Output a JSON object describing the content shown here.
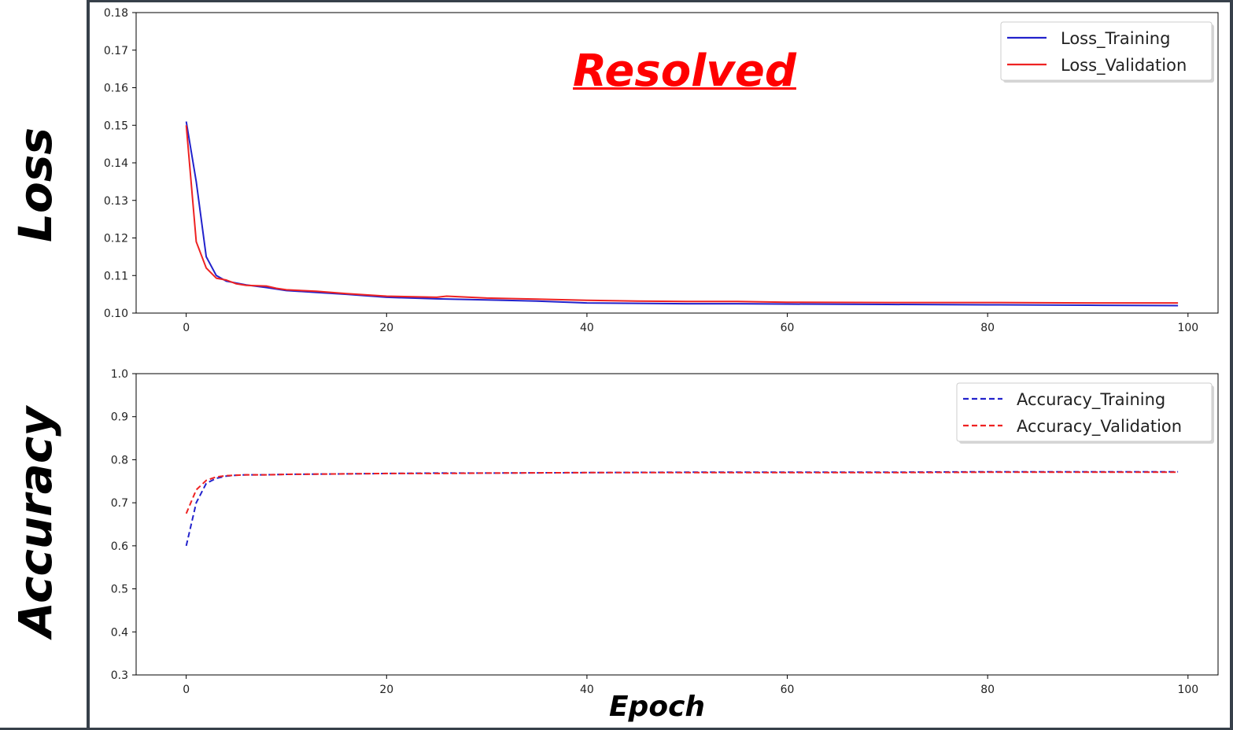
{
  "annotations": {
    "resolved": "Resolved",
    "loss_label": "Loss",
    "accuracy_label": "Accuracy",
    "epoch_label": "Epoch"
  },
  "colors": {
    "training": "#2222cc",
    "validation": "#ee2222"
  },
  "chart_data": [
    {
      "type": "line",
      "title": "",
      "xlabel": "",
      "ylabel": "Loss",
      "xlim": [
        -5,
        103
      ],
      "ylim": [
        0.1,
        0.18
      ],
      "xticks": [
        0,
        20,
        40,
        60,
        80,
        100
      ],
      "yticks": [
        0.1,
        0.11,
        0.12,
        0.13,
        0.14,
        0.15,
        0.16,
        0.17,
        0.18
      ],
      "ytick_labels": [
        "0.10",
        "0.11",
        "0.12",
        "0.13",
        "0.14",
        "0.15",
        "0.16",
        "0.17",
        "0.18"
      ],
      "xtick_labels": [
        "0",
        "20",
        "40",
        "60",
        "80",
        "100"
      ],
      "legend_position": "top-right",
      "series": [
        {
          "name": "Loss_Training",
          "style": "solid",
          "color": "#2222cc",
          "x": [
            0,
            1,
            2,
            3,
            4,
            5,
            6,
            8,
            10,
            13,
            16,
            20,
            25,
            30,
            35,
            40,
            45,
            50,
            55,
            60,
            70,
            80,
            90,
            99
          ],
          "y": [
            0.151,
            0.135,
            0.115,
            0.11,
            0.1085,
            0.108,
            0.1075,
            0.1068,
            0.106,
            0.1055,
            0.105,
            0.1042,
            0.1038,
            0.1035,
            0.1032,
            0.1027,
            0.1026,
            0.1025,
            0.1025,
            0.1024,
            0.1023,
            0.1022,
            0.1021,
            0.102
          ]
        },
        {
          "name": "Loss_Validation",
          "style": "solid",
          "color": "#ee2222",
          "x": [
            0,
            1,
            2,
            3,
            4,
            5,
            6,
            8,
            9,
            10,
            13,
            16,
            20,
            25,
            26,
            30,
            35,
            40,
            45,
            50,
            55,
            60,
            70,
            80,
            90,
            99
          ],
          "y": [
            0.15,
            0.119,
            0.112,
            0.1093,
            0.1088,
            0.1078,
            0.1074,
            0.1072,
            0.1066,
            0.1062,
            0.1058,
            0.1052,
            0.1045,
            0.1042,
            0.1045,
            0.104,
            0.1037,
            0.1034,
            0.1032,
            0.1031,
            0.1031,
            0.1029,
            0.1028,
            0.1028,
            0.1027,
            0.1027
          ]
        }
      ]
    },
    {
      "type": "line",
      "title": "",
      "xlabel": "Epoch",
      "ylabel": "Accuracy",
      "xlim": [
        -5,
        103
      ],
      "ylim": [
        0.3,
        1.0
      ],
      "xticks": [
        0,
        20,
        40,
        60,
        80,
        100
      ],
      "yticks": [
        0.3,
        0.4,
        0.5,
        0.6,
        0.7,
        0.8,
        0.9,
        1.0
      ],
      "ytick_labels": [
        "0.3",
        "0.4",
        "0.5",
        "0.6",
        "0.7",
        "0.8",
        "0.9",
        "1.0"
      ],
      "xtick_labels": [
        "0",
        "20",
        "40",
        "60",
        "80",
        "100"
      ],
      "legend_position": "top-right",
      "series": [
        {
          "name": "Accuracy_Training",
          "style": "dashed",
          "color": "#2222cc",
          "x": [
            0,
            1,
            2,
            3,
            4,
            5,
            6,
            8,
            10,
            15,
            20,
            25,
            30,
            40,
            50,
            60,
            70,
            80,
            90,
            99
          ],
          "y": [
            0.6,
            0.7,
            0.745,
            0.757,
            0.762,
            0.764,
            0.765,
            0.765,
            0.766,
            0.767,
            0.768,
            0.769,
            0.769,
            0.77,
            0.771,
            0.771,
            0.771,
            0.772,
            0.772,
            0.772
          ]
        },
        {
          "name": "Accuracy_Validation",
          "style": "dashed",
          "color": "#ee2222",
          "x": [
            0,
            1,
            2,
            3,
            4,
            5,
            6,
            8,
            10,
            15,
            20,
            25,
            30,
            40,
            50,
            60,
            70,
            80,
            90,
            99
          ],
          "y": [
            0.675,
            0.73,
            0.752,
            0.76,
            0.763,
            0.764,
            0.765,
            0.765,
            0.766,
            0.767,
            0.768,
            0.768,
            0.769,
            0.77,
            0.77,
            0.77,
            0.77,
            0.771,
            0.771,
            0.771
          ]
        }
      ]
    }
  ]
}
